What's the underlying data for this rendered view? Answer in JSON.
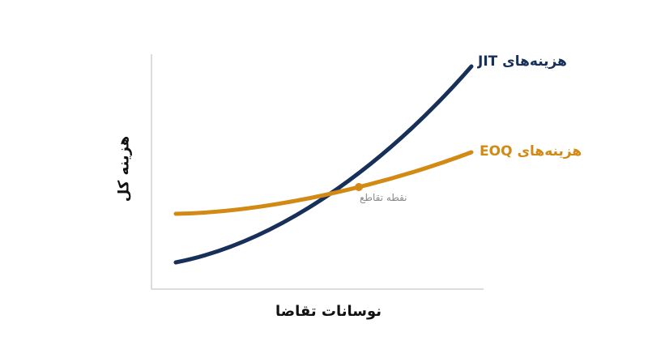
{
  "axes": {
    "x_label": "نوسانات تقاضا",
    "y_label": "هزینه کل"
  },
  "curves": [
    {
      "label": "هزینه‌های JIT"
    },
    {
      "label": "هزینه‌های EOQ"
    }
  ],
  "annotation": "نقطه تقاطع"
}
